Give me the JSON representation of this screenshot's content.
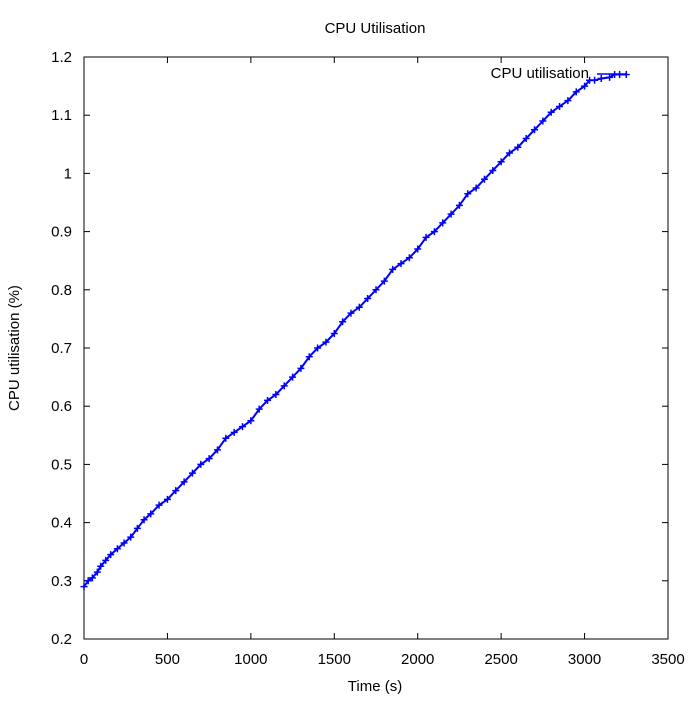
{
  "chart_data": {
    "type": "line",
    "title": "CPU Utilisation",
    "xlabel": "Time (s)",
    "ylabel": "CPU utilisation (%)",
    "xlim": [
      0,
      3500
    ],
    "ylim": [
      0.2,
      1.2
    ],
    "x_ticks": [
      0,
      500,
      1000,
      1500,
      2000,
      2500,
      3000,
      3500
    ],
    "y_ticks": [
      0.2,
      0.3,
      0.4,
      0.5,
      0.6,
      0.7,
      0.8,
      0.9,
      1.0,
      1.1,
      1.2
    ],
    "x_tick_labels": [
      "0",
      "500",
      "1000",
      "1500",
      "2000",
      "2500",
      "3000",
      "3500"
    ],
    "y_tick_labels": [
      "0.2",
      "0.3",
      "0.4",
      "0.5",
      "0.6",
      "0.7",
      "0.8",
      "0.9",
      "1",
      "1.1",
      "1.2"
    ],
    "grid": false,
    "legend_position": "top-right",
    "series": [
      {
        "name": "CPU utilisation",
        "color": "#0000ff",
        "marker": "plus",
        "x": [
          0,
          25,
          50,
          80,
          100,
          130,
          160,
          200,
          240,
          280,
          320,
          360,
          400,
          450,
          500,
          550,
          600,
          650,
          700,
          750,
          800,
          850,
          900,
          950,
          1000,
          1050,
          1100,
          1150,
          1200,
          1250,
          1300,
          1350,
          1400,
          1450,
          1500,
          1550,
          1600,
          1650,
          1700,
          1750,
          1800,
          1850,
          1900,
          1950,
          2000,
          2050,
          2100,
          2150,
          2200,
          2250,
          2300,
          2350,
          2400,
          2450,
          2500,
          2550,
          2600,
          2650,
          2700,
          2750,
          2800,
          2850,
          2900,
          2950,
          3000,
          3030,
          3060,
          3100,
          3150,
          3180,
          3210,
          3250
        ],
        "y": [
          0.29,
          0.3,
          0.305,
          0.315,
          0.325,
          0.335,
          0.345,
          0.355,
          0.365,
          0.375,
          0.39,
          0.405,
          0.415,
          0.43,
          0.44,
          0.455,
          0.47,
          0.485,
          0.5,
          0.51,
          0.525,
          0.545,
          0.555,
          0.565,
          0.575,
          0.595,
          0.61,
          0.62,
          0.635,
          0.65,
          0.665,
          0.685,
          0.7,
          0.71,
          0.725,
          0.745,
          0.76,
          0.77,
          0.785,
          0.8,
          0.815,
          0.835,
          0.845,
          0.855,
          0.87,
          0.89,
          0.9,
          0.915,
          0.93,
          0.945,
          0.965,
          0.975,
          0.99,
          1.005,
          1.02,
          1.035,
          1.045,
          1.06,
          1.075,
          1.09,
          1.105,
          1.115,
          1.125,
          1.14,
          1.15,
          1.16,
          1.16,
          1.163,
          1.165,
          1.17,
          1.17,
          1.17
        ]
      }
    ]
  }
}
